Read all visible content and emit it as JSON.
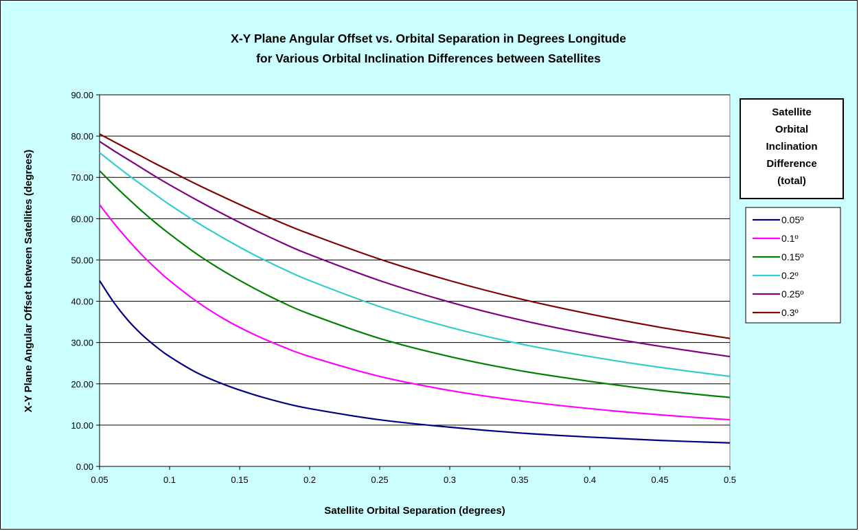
{
  "chart_data": {
    "type": "line",
    "title": [
      "X-Y Plane Angular Offset vs. Orbital Separation in Degrees Longitude",
      "for Various Orbital Inclination Differences between Satellites"
    ],
    "xlabel": "Satellite Orbital Separation (degrees)",
    "ylabel": "X-Y Plane Angular Offset between Satellites (degrees)",
    "xlim": [
      0.05,
      0.5
    ],
    "ylim": [
      0,
      90
    ],
    "xticks": [
      0.05,
      0.1,
      0.15,
      0.2,
      0.25,
      0.3,
      0.35,
      0.4,
      0.45,
      0.5
    ],
    "xtick_labels": [
      "0.05",
      "0.1",
      "0.15",
      "0.2",
      "0.25",
      "0.3",
      "0.35",
      "0.4",
      "0.45",
      "0.5"
    ],
    "yticks": [
      0,
      10,
      20,
      30,
      40,
      50,
      60,
      70,
      80,
      90
    ],
    "ytick_labels": [
      "0.00",
      "10.00",
      "20.00",
      "30.00",
      "40.00",
      "50.00",
      "60.00",
      "70.00",
      "80.00",
      "90.00"
    ],
    "grid": "horizontal",
    "legend_title": [
      "Satellite",
      "Orbital",
      "Inclination",
      "Difference",
      "(total)"
    ],
    "legend_position": "right",
    "x": [
      0.05,
      0.06,
      0.07,
      0.08,
      0.09,
      0.1,
      0.12,
      0.14,
      0.16,
      0.18,
      0.2,
      0.25,
      0.3,
      0.35,
      0.4,
      0.45,
      0.5
    ],
    "series": [
      {
        "name": "0.05º",
        "color": "#000080",
        "values": [
          45.0,
          39.8,
          35.5,
          32.0,
          29.1,
          26.6,
          22.6,
          19.7,
          17.4,
          15.5,
          14.0,
          11.3,
          9.5,
          8.1,
          7.1,
          6.3,
          5.7
        ]
      },
      {
        "name": "0.1º",
        "color": "#FF00FF",
        "values": [
          63.4,
          59.0,
          55.0,
          51.3,
          48.0,
          45.0,
          39.8,
          35.5,
          32.0,
          29.1,
          26.6,
          21.8,
          18.4,
          15.9,
          14.0,
          12.5,
          11.3
        ]
      },
      {
        "name": "0.15º",
        "color": "#008000",
        "values": [
          71.6,
          68.2,
          65.0,
          61.9,
          59.0,
          56.3,
          51.3,
          47.0,
          43.2,
          39.8,
          36.9,
          31.0,
          26.6,
          23.2,
          20.6,
          18.4,
          16.7
        ]
      },
      {
        "name": "0.2º",
        "color": "#33CCCC",
        "values": [
          76.0,
          73.3,
          70.7,
          68.2,
          65.8,
          63.4,
          59.0,
          55.0,
          51.3,
          48.0,
          45.0,
          38.7,
          33.7,
          29.7,
          26.6,
          24.0,
          21.8
        ]
      },
      {
        "name": "0.25º",
        "color": "#800080",
        "values": [
          78.7,
          76.5,
          74.4,
          72.3,
          70.2,
          68.2,
          64.4,
          60.8,
          57.4,
          54.2,
          51.3,
          45.0,
          39.8,
          35.5,
          32.0,
          29.1,
          26.6
        ]
      },
      {
        "name": "0.3º",
        "color": "#800000",
        "values": [
          80.5,
          78.7,
          76.9,
          75.1,
          73.3,
          71.6,
          68.2,
          65.0,
          61.9,
          59.0,
          56.3,
          50.2,
          45.0,
          40.6,
          36.9,
          33.7,
          31.0
        ]
      }
    ]
  }
}
